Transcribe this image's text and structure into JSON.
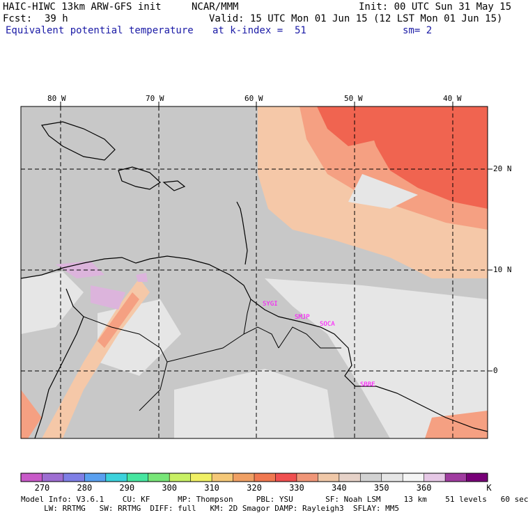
{
  "header": {
    "model": "HAIC-HIWC 13km ARW-GFS init",
    "org": "NCAR/MMM",
    "init": "Init: 00 UTC Sun 31 May 15",
    "fcst_label": "Fcst:",
    "fcst_value": "39 h",
    "valid": "Valid: 15 UTC Mon 01 Jun 15 (12 LST Mon 01 Jun 15)",
    "field": "Equivalent potential temperature",
    "level": "at k-index =  51",
    "smooth": "sm= 2"
  },
  "axes": {
    "lon_labels": [
      "80 W",
      "70 W",
      "60 W",
      "50 W",
      "40 W"
    ],
    "lat_labels": [
      "20 N",
      "10 N",
      "0"
    ]
  },
  "stations": [
    "SYGI",
    "SMJP",
    "SOCA",
    "SBBE"
  ],
  "colorbar": {
    "labels": [
      "270",
      "280",
      "290",
      "300",
      "310",
      "320",
      "330",
      "340",
      "350",
      "360",
      "K"
    ],
    "colors": [
      "#c85ac8",
      "#9e6ed2",
      "#7f7fe6",
      "#5aa0f0",
      "#3cd2dc",
      "#46e6a0",
      "#78e678",
      "#c8f064",
      "#f0f064",
      "#f5c878",
      "#f0a064",
      "#f07850",
      "#f05050",
      "#f09678",
      "#f0c8a8",
      "#e6d2c8",
      "#d2d2d2",
      "#e6e6e6",
      "#f5f5f5",
      "#e6c8e6",
      "#a03ca0",
      "#780078"
    ]
  },
  "footer": {
    "line1": "Model Info: V3.6.1    CU: KF      MP: Thompson     PBL: YSU       SF: Noah LSM     13 km    51 levels   60 sec",
    "line2": "     LW: RRTMG   SW: RRTMG  DIFF: full   KM: 2D Smagor DAMP: Rayleigh3  SFLAY: MM5"
  },
  "map_colors": {
    "gray": "#c8c8c8",
    "light_gray": "#e6e6e6",
    "peach": "#f5c8a8",
    "salmon": "#f5a082",
    "red": "#f06450",
    "lilac": "#dcb4dc",
    "station": "#ff00ff"
  }
}
